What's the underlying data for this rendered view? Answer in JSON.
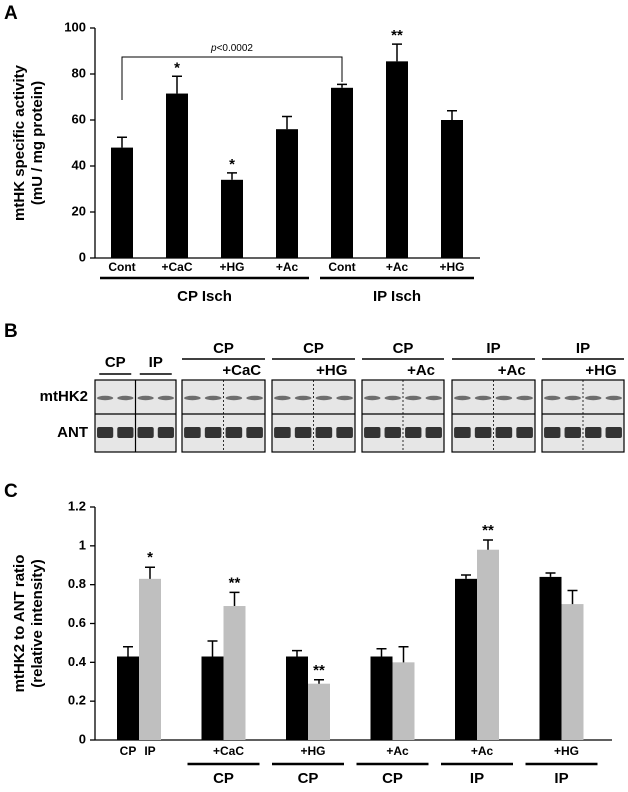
{
  "panel_labels": [
    "A",
    "B",
    "C"
  ],
  "chart_data": [
    {
      "type": "bar",
      "ylabel": [
        "mtHK specific activity",
        "(mU / mg protein)"
      ],
      "color": "#000000",
      "ylim": [
        0,
        100
      ],
      "yticks": [
        0,
        20,
        40,
        60,
        80,
        100
      ],
      "groups": [
        {
          "label": "CP Isch",
          "categories": [
            "Cont",
            "+CaC",
            "+HG",
            "+Ac"
          ],
          "values": [
            48,
            71.5,
            34,
            56
          ],
          "errors": [
            4.5,
            7.5,
            3,
            5.5
          ],
          "annotations": [
            null,
            "*",
            "*",
            null
          ]
        },
        {
          "label": "IP Isch",
          "categories": [
            "Cont",
            "+Ac",
            "+HG"
          ],
          "values": [
            74,
            85.5,
            60
          ],
          "errors": [
            1.5,
            7.5,
            4
          ],
          "annotations": [
            null,
            "**",
            null
          ]
        }
      ],
      "bracket_label": {
        "italic": "p",
        "text": "<0.0002"
      }
    },
    {
      "type": "grouped_bar",
      "ylabel": [
        "mtHK2 to ANT ratio",
        "(relative intensity)"
      ],
      "ylim": [
        0,
        1.2
      ],
      "yticks": [
        0,
        0.2,
        0.4,
        0.6,
        0.8,
        1,
        1.2
      ],
      "categories": [
        null,
        "+CaC",
        "+HG",
        "+Ac",
        "+Ac",
        "+HG"
      ],
      "first_category_bar_labels": [
        "CP",
        "IP"
      ],
      "group_labels": [
        null,
        "CP",
        "CP",
        "CP",
        "IP",
        "IP"
      ],
      "series": [
        {
          "color": "#000000",
          "values": [
            0.43,
            0.43,
            0.43,
            0.43,
            0.83,
            0.84
          ],
          "errors": [
            0.05,
            0.08,
            0.03,
            0.04,
            0.02,
            0.02
          ],
          "annotations": [
            null,
            null,
            null,
            null,
            null,
            null
          ]
        },
        {
          "color": "#bfbfbf",
          "values": [
            0.83,
            0.69,
            0.29,
            0.4,
            0.98,
            0.7
          ],
          "errors": [
            0.06,
            0.07,
            0.02,
            0.08,
            0.05,
            0.07
          ],
          "annotations": [
            "*",
            "**",
            "**",
            null,
            "**",
            null
          ]
        }
      ]
    }
  ],
  "blot": {
    "row_labels": [
      "mtHK2",
      "ANT"
    ],
    "first_panel_headers": [
      "CP",
      "IP"
    ],
    "panels": [
      {
        "label": "CP",
        "treatment": "+CaC"
      },
      {
        "label": "CP",
        "treatment": "+HG"
      },
      {
        "label": "CP",
        "treatment": "+Ac"
      },
      {
        "label": "IP",
        "treatment": "+Ac"
      },
      {
        "label": "IP",
        "treatment": "+HG"
      }
    ]
  }
}
